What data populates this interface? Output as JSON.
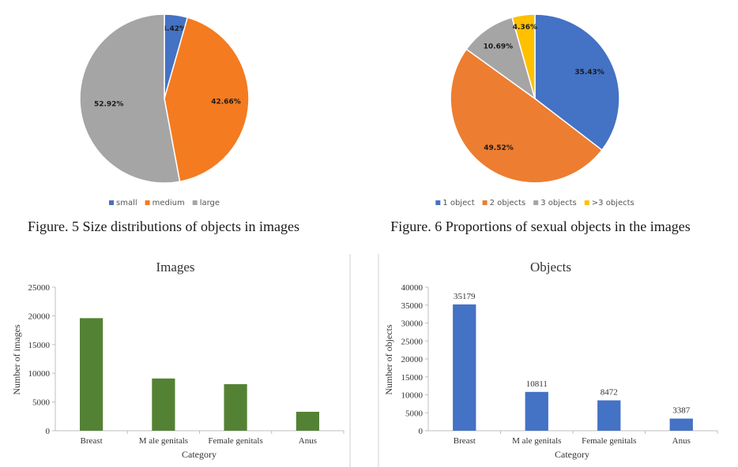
{
  "chart_data": [
    {
      "type": "pie",
      "title": "",
      "categories": [
        "small",
        "medium",
        "large"
      ],
      "values": [
        4.42,
        42.66,
        52.92
      ],
      "labels": [
        "4.42%",
        "42.66%",
        "52.92%"
      ],
      "colors": [
        "#4472c4",
        "#f47b20",
        "#a5a5a5"
      ],
      "legend": "bottom",
      "caption": "Figure. 5 Size distributions of objects in images"
    },
    {
      "type": "pie",
      "title": "",
      "categories": [
        "1 object",
        "2 objects",
        "3 objects",
        ">3 objects"
      ],
      "values": [
        35.43,
        49.52,
        10.69,
        4.36
      ],
      "labels": [
        "35.43%",
        "49.52%",
        "10.69%",
        "4.36%"
      ],
      "colors": [
        "#4472c4",
        "#ed7d31",
        "#a5a5a5",
        "#ffc000"
      ],
      "legend": "bottom",
      "caption": "Figure. 6 Proportions of sexual objects in the images"
    },
    {
      "type": "bar",
      "title": "Images",
      "categories": [
        "Breast",
        "M ale genitals",
        "Female genitals",
        "Anus"
      ],
      "values": [
        19600,
        9100,
        8100,
        3300
      ],
      "data_labels": [],
      "xlabel": "Category",
      "ylabel": "Number of images",
      "ylim": [
        0,
        25000
      ],
      "yticks": [
        "0",
        "5000",
        "10000",
        "15000",
        "20000",
        "25000"
      ],
      "color": "#548235",
      "grid": false
    },
    {
      "type": "bar",
      "title": "Objects",
      "categories": [
        "Breast",
        "M ale genitals",
        "Female genitals",
        "Anus"
      ],
      "values": [
        35179,
        10811,
        8472,
        3387
      ],
      "data_labels": [
        "35179",
        "10811",
        "8472",
        "3387"
      ],
      "xlabel": "Category",
      "ylabel": "Number of objects",
      "ylim": [
        0,
        40000
      ],
      "yticks": [
        "0",
        "5000",
        "10000",
        "15000",
        "20000",
        "25000",
        "30000",
        "35000",
        "40000"
      ],
      "color": "#4472c4",
      "grid": false
    }
  ]
}
